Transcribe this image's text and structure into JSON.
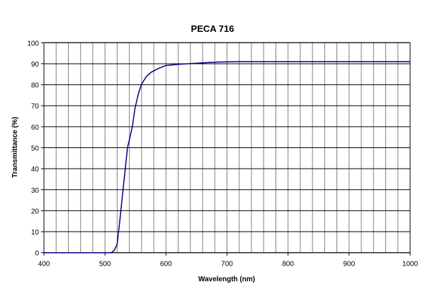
{
  "chart_data": {
    "type": "line",
    "title": "PECA 716",
    "xlabel": "Wavelength (nm)",
    "ylabel": "Transmittance (%)",
    "xlim": [
      400,
      1000
    ],
    "ylim": [
      0,
      100
    ],
    "xticks": [
      400,
      500,
      600,
      700,
      800,
      900,
      1000
    ],
    "yticks": [
      0,
      10,
      20,
      30,
      40,
      50,
      60,
      70,
      80,
      90,
      100
    ],
    "x_grid_step": 20,
    "grid": true,
    "legend": "none",
    "line_color": "#000080",
    "series": [
      {
        "x": [
          400,
          450,
          500,
          510,
          515,
          520,
          525,
          530,
          537,
          545,
          549,
          555,
          560,
          568,
          576,
          588,
          599,
          620,
          638,
          660,
          685,
          720,
          800,
          900,
          1000
        ],
        "y": [
          0,
          0,
          0,
          0,
          1,
          4,
          17,
          31,
          50,
          60,
          68.5,
          76,
          80.3,
          84,
          86,
          87.8,
          89.1,
          89.7,
          90,
          90.4,
          90.8,
          91,
          91,
          91,
          91
        ]
      }
    ]
  }
}
